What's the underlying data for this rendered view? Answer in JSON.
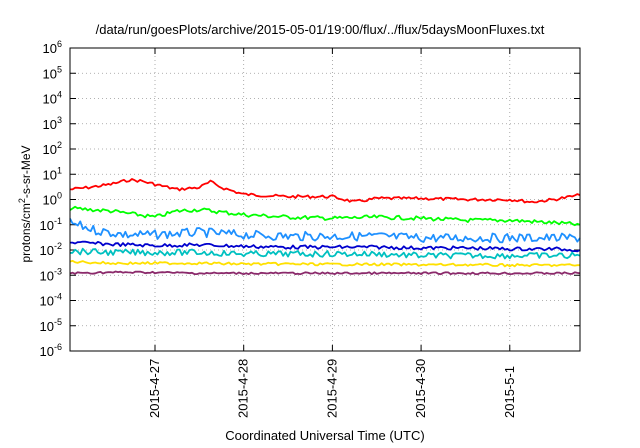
{
  "chart_data": {
    "type": "line",
    "title": "/data/run/goesPlots/archive/2015-05-01/19:00/flux/../flux/5daysMoonFluxes.txt",
    "xlabel": "Coordinated Universal Time (UTC)",
    "ylabel": "protons/cm2-s-sr-MeV",
    "ylabel_parts": {
      "before": "protons/cm",
      "sup": "2",
      "after": "-s-sr-MeV"
    },
    "y_scale": "log",
    "ylim": [
      1e-06,
      1000000.0
    ],
    "y_ticks": [
      {
        "value": 1e-06,
        "base": "10",
        "exp": "-6"
      },
      {
        "value": 1e-05,
        "base": "10",
        "exp": "-5"
      },
      {
        "value": 0.0001,
        "base": "10",
        "exp": "-4"
      },
      {
        "value": 0.001,
        "base": "10",
        "exp": "-3"
      },
      {
        "value": 0.01,
        "base": "10",
        "exp": "-2"
      },
      {
        "value": 0.1,
        "base": "10",
        "exp": "-1"
      },
      {
        "value": 1,
        "base": "10",
        "exp": "0"
      },
      {
        "value": 10,
        "base": "10",
        "exp": "1"
      },
      {
        "value": 100,
        "base": "10",
        "exp": "2"
      },
      {
        "value": 1000,
        "base": "10",
        "exp": "3"
      },
      {
        "value": 10000,
        "base": "10",
        "exp": "4"
      },
      {
        "value": 100000,
        "base": "10",
        "exp": "5"
      },
      {
        "value": 1000000,
        "base": "10",
        "exp": "6"
      }
    ],
    "xlim": [
      "2015-04-26 01:00",
      "2015-05-01 19:00"
    ],
    "x_ticks": [
      "2015-4-27",
      "2015-4-28",
      "2015-4-29",
      "2015-4-30",
      "2015-5-1"
    ],
    "grid": true,
    "series": [
      {
        "color": "#ff0000",
        "x": [
          "2015-04-26 01:00",
          "2015-04-26 06:00",
          "2015-04-26 12:00",
          "2015-04-26 17:00",
          "2015-04-26 20:00",
          "2015-04-27 00:00",
          "2015-04-27 06:00",
          "2015-04-27 12:00",
          "2015-04-27 15:00",
          "2015-04-27 18:00",
          "2015-04-28 00:00",
          "2015-04-28 12:00",
          "2015-04-29 00:00",
          "2015-04-29 06:00",
          "2015-04-29 12:00",
          "2015-04-30 00:00",
          "2015-04-30 12:00",
          "2015-05-01 00:00",
          "2015-05-01 06:00",
          "2015-05-01 12:00",
          "2015-05-01 19:00"
        ],
        "values": [
          2.5,
          3.0,
          4.0,
          6.0,
          5.5,
          4.0,
          2.5,
          3.0,
          5.0,
          3.0,
          1.6,
          1.3,
          1.3,
          0.8,
          1.1,
          1.1,
          1.0,
          1.0,
          0.8,
          1.0,
          1.5
        ]
      },
      {
        "color": "#00ff00",
        "x": [
          "2015-04-26 01:00",
          "2015-04-26 12:00",
          "2015-04-27 00:00",
          "2015-04-27 06:00",
          "2015-04-27 12:00",
          "2015-04-28 00:00",
          "2015-04-28 12:00",
          "2015-04-29 00:00",
          "2015-04-29 12:00",
          "2015-04-30 00:00",
          "2015-04-30 12:00",
          "2015-05-01 00:00",
          "2015-05-01 12:00",
          "2015-05-01 19:00"
        ],
        "values": [
          0.45,
          0.35,
          0.2,
          0.35,
          0.4,
          0.25,
          0.2,
          0.18,
          0.2,
          0.18,
          0.15,
          0.15,
          0.12,
          0.1
        ]
      },
      {
        "color": "#1e90ff",
        "x": [
          "2015-04-26 01:00",
          "2015-04-26 08:00",
          "2015-04-26 16:00",
          "2015-04-27 00:00",
          "2015-04-27 12:00",
          "2015-04-28 00:00",
          "2015-04-28 12:00",
          "2015-04-29 00:00",
          "2015-04-29 12:00",
          "2015-04-30 00:00",
          "2015-04-30 12:00",
          "2015-05-01 00:00",
          "2015-05-01 12:00",
          "2015-05-01 19:00"
        ],
        "values": [
          0.12,
          0.06,
          0.04,
          0.04,
          0.05,
          0.04,
          0.035,
          0.035,
          0.035,
          0.03,
          0.03,
          0.03,
          0.03,
          0.03
        ]
      },
      {
        "color": "#0000cd",
        "x": [
          "2015-04-26 01:00",
          "2015-04-26 12:00",
          "2015-04-27 00:00",
          "2015-04-27 12:00",
          "2015-04-28 00:00",
          "2015-04-28 12:00",
          "2015-04-29 00:00",
          "2015-04-29 12:00",
          "2015-04-30 00:00",
          "2015-04-30 12:00",
          "2015-05-01 00:00",
          "2015-05-01 12:00",
          "2015-05-01 19:00"
        ],
        "values": [
          0.02,
          0.017,
          0.015,
          0.016,
          0.014,
          0.013,
          0.013,
          0.013,
          0.012,
          0.012,
          0.011,
          0.011,
          0.01
        ]
      },
      {
        "color": "#00c0c0",
        "x": [
          "2015-04-26 01:00",
          "2015-04-26 12:00",
          "2015-04-27 00:00",
          "2015-04-27 12:00",
          "2015-04-28 00:00",
          "2015-04-28 12:00",
          "2015-04-29 00:00",
          "2015-04-29 12:00",
          "2015-04-30 00:00",
          "2015-04-30 12:00",
          "2015-05-01 00:00",
          "2015-05-01 12:00",
          "2015-05-01 19:00"
        ],
        "values": [
          0.009,
          0.008,
          0.008,
          0.008,
          0.007,
          0.007,
          0.007,
          0.007,
          0.006,
          0.006,
          0.006,
          0.006,
          0.006
        ]
      },
      {
        "color": "#ffe000",
        "x": [
          "2015-04-26 01:00",
          "2015-04-26 12:00",
          "2015-04-27 00:00",
          "2015-04-27 12:00",
          "2015-04-28 00:00",
          "2015-04-28 12:00",
          "2015-04-29 00:00",
          "2015-04-29 12:00",
          "2015-04-30 00:00",
          "2015-04-30 12:00",
          "2015-05-01 00:00",
          "2015-05-01 12:00",
          "2015-05-01 19:00"
        ],
        "values": [
          0.0035,
          0.003,
          0.003,
          0.003,
          0.0028,
          0.0028,
          0.0027,
          0.0027,
          0.0026,
          0.0026,
          0.0025,
          0.0025,
          0.0025
        ]
      },
      {
        "color": "#8b2a6b",
        "x": [
          "2015-04-26 01:00",
          "2015-04-26 12:00",
          "2015-04-27 00:00",
          "2015-04-27 12:00",
          "2015-04-28 00:00",
          "2015-04-28 12:00",
          "2015-04-29 00:00",
          "2015-04-29 12:00",
          "2015-04-30 00:00",
          "2015-04-30 12:00",
          "2015-05-01 00:00",
          "2015-05-01 12:00",
          "2015-05-01 19:00"
        ],
        "values": [
          0.0012,
          0.0013,
          0.0013,
          0.0012,
          0.0012,
          0.0012,
          0.0012,
          0.0012,
          0.0012,
          0.0012,
          0.0012,
          0.0012,
          0.0012
        ]
      }
    ]
  }
}
